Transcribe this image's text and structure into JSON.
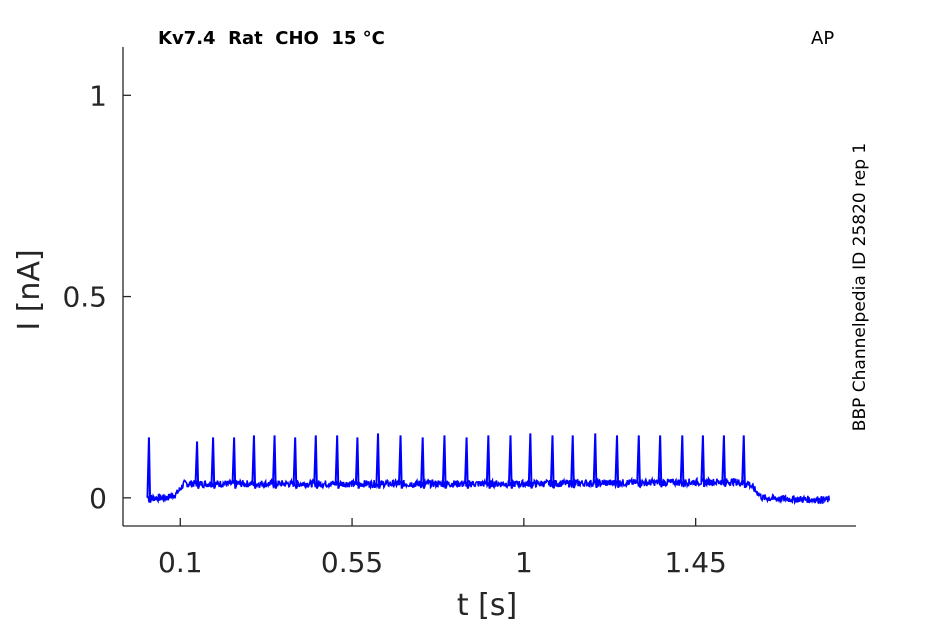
{
  "chart_data": {
    "type": "line",
    "title": "Kv7.4  Rat  CHO  15 °C",
    "protocol": "AP",
    "source": "BBP Channelpedia ID 25820 rep 1",
    "xlabel": "t [s]",
    "ylabel": "I [nA]",
    "xlim": [
      -0.05,
      1.87
    ],
    "ylim": [
      -0.07,
      1.12
    ],
    "xticks": [
      0.1,
      0.55,
      1,
      1.45
    ],
    "xtick_labels": [
      "0.1",
      "0.55",
      "1",
      "1.45"
    ],
    "yticks": [
      0,
      0.5,
      1
    ],
    "ytick_labels": [
      "0",
      "0.5",
      "1"
    ],
    "grid": false,
    "color": "#0000ff",
    "series": [
      {
        "segments": [
          {
            "x": [
              0.015,
              0.065,
              0.09,
              0.11,
              0.5,
              1.0,
              1.55,
              1.59,
              1.625,
              1.66,
              1.8
            ],
            "y": [
              0,
              0.0,
              0.01,
              0.035,
              0.035,
              0.035,
              0.04,
              0.035,
              0.0,
              -0.002,
              -0.005
            ]
          }
        ],
        "spikes": [
          {
            "t": 0.018,
            "peak": 0.15
          },
          {
            "t": 0.144,
            "peak": 0.14
          },
          {
            "t": 0.186,
            "peak": 0.15
          },
          {
            "t": 0.241,
            "peak": 0.15
          },
          {
            "t": 0.293,
            "peak": 0.155
          },
          {
            "t": 0.347,
            "peak": 0.155
          },
          {
            "t": 0.401,
            "peak": 0.15
          },
          {
            "t": 0.455,
            "peak": 0.155
          },
          {
            "t": 0.511,
            "peak": 0.155
          },
          {
            "t": 0.564,
            "peak": 0.15
          },
          {
            "t": 0.618,
            "peak": 0.16
          },
          {
            "t": 0.677,
            "peak": 0.155
          },
          {
            "t": 0.735,
            "peak": 0.15
          },
          {
            "t": 0.792,
            "peak": 0.155
          },
          {
            "t": 0.85,
            "peak": 0.15
          },
          {
            "t": 0.907,
            "peak": 0.155
          },
          {
            "t": 0.965,
            "peak": 0.155
          },
          {
            "t": 1.017,
            "peak": 0.16
          },
          {
            "t": 1.075,
            "peak": 0.155
          },
          {
            "t": 1.128,
            "peak": 0.155
          },
          {
            "t": 1.187,
            "peak": 0.16
          },
          {
            "t": 1.244,
            "peak": 0.155
          },
          {
            "t": 1.301,
            "peak": 0.155
          },
          {
            "t": 1.357,
            "peak": 0.155
          },
          {
            "t": 1.415,
            "peak": 0.155
          },
          {
            "t": 1.469,
            "peak": 0.155
          },
          {
            "t": 1.524,
            "peak": 0.155
          },
          {
            "t": 1.576,
            "peak": 0.155
          }
        ]
      }
    ]
  }
}
